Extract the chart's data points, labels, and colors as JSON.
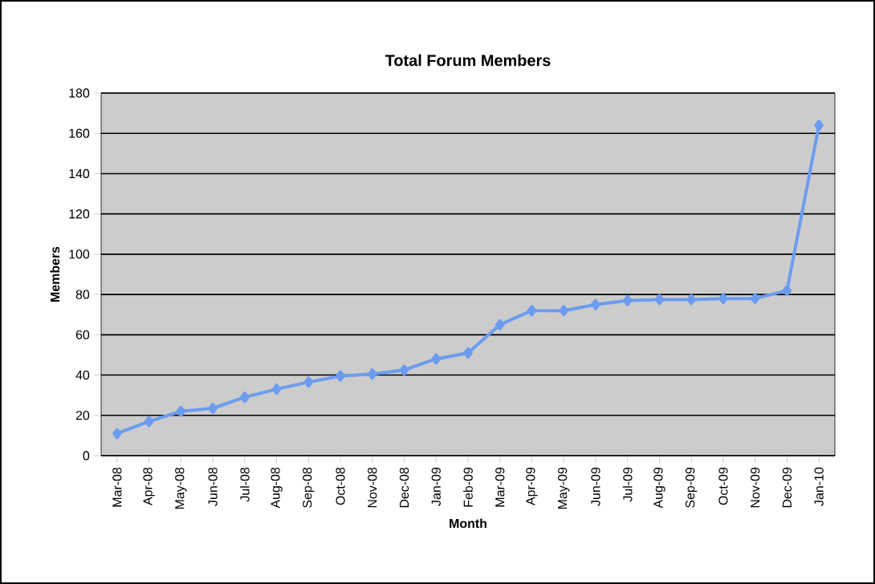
{
  "chart_data": {
    "type": "line",
    "title": "Total Forum Members",
    "xlabel": "Month",
    "ylabel": "Members",
    "categories": [
      "Mar-08",
      "Apr-08",
      "May-08",
      "Jun-08",
      "Jul-08",
      "Aug-08",
      "Sep-08",
      "Oct-08",
      "Nov-08",
      "Dec-08",
      "Jan-09",
      "Feb-09",
      "Mar-09",
      "Apr-09",
      "May-09",
      "Jun-09",
      "Jul-09",
      "Aug-09",
      "Sep-09",
      "Oct-09",
      "Nov-09",
      "Dec-09",
      "Jan-10"
    ],
    "series": [
      {
        "color": "#6c9cf0",
        "values": [
          11,
          17,
          22,
          23.5,
          29,
          33,
          36.5,
          39.5,
          40.5,
          42.5,
          48,
          51,
          65,
          72,
          72,
          75,
          77,
          77.5,
          77.5,
          78,
          78,
          82,
          164
        ]
      }
    ],
    "ylim": [
      0,
      180
    ],
    "yticks": [
      0,
      20,
      40,
      60,
      80,
      100,
      120,
      140,
      160,
      180
    ],
    "grid": "y",
    "marker": "diamond",
    "line_style": "solid"
  }
}
